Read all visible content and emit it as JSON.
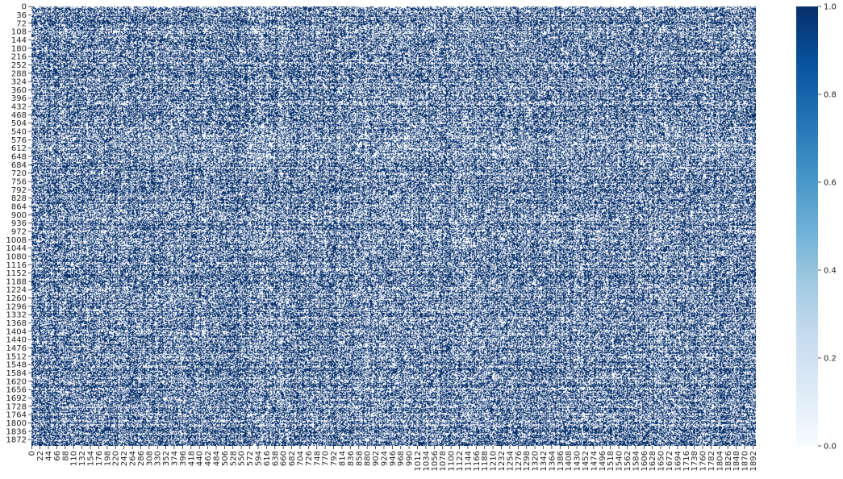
{
  "chart_data": {
    "type": "heatmap",
    "title": "",
    "xlabel": "",
    "ylabel": "",
    "n_rows": 1900,
    "n_cols": 1900,
    "values": "binary (0 or 1) per cell; dense irregular pattern, roughly half the cells are 1",
    "x_tick_labels": [
      "0",
      "22",
      "44",
      "66",
      "88",
      "110",
      "132",
      "154",
      "176",
      "198",
      "220",
      "242",
      "264",
      "286",
      "308",
      "330",
      "352",
      "374",
      "396",
      "418",
      "440",
      "462",
      "484",
      "506",
      "528",
      "550",
      "572",
      "594",
      "616",
      "638",
      "660",
      "682",
      "704",
      "726",
      "748",
      "770",
      "792",
      "814",
      "836",
      "858",
      "880",
      "902",
      "924",
      "946",
      "968",
      "990",
      "1012",
      "1034",
      "1056",
      "1078",
      "1100",
      "1122",
      "1144",
      "1166",
      "1188",
      "1210",
      "1232",
      "1254",
      "1276",
      "1298",
      "1320",
      "1342",
      "1364",
      "1386",
      "1408",
      "1430",
      "1452",
      "1474",
      "1496",
      "1518",
      "1540",
      "1562",
      "1584",
      "1606",
      "1628",
      "1650",
      "1672",
      "1694",
      "1716",
      "1738",
      "1760",
      "1782",
      "1804",
      "1826",
      "1848",
      "1870",
      "1892"
    ],
    "y_tick_labels": [
      "0",
      "36",
      "72",
      "108",
      "144",
      "180",
      "216",
      "252",
      "288",
      "324",
      "360",
      "396",
      "432",
      "468",
      "504",
      "540",
      "576",
      "612",
      "648",
      "684",
      "720",
      "756",
      "792",
      "828",
      "864",
      "900",
      "936",
      "972",
      "1008",
      "1044",
      "1080",
      "1116",
      "1152",
      "1188",
      "1224",
      "1260",
      "1296",
      "1332",
      "1368",
      "1404",
      "1440",
      "1476",
      "1512",
      "1548",
      "1584",
      "1620",
      "1656",
      "1692",
      "1728",
      "1764",
      "1800",
      "1836",
      "1872"
    ],
    "colorbar": {
      "range": [
        0.0,
        1.0
      ],
      "ticks": [
        "0.0",
        "0.2",
        "0.4",
        "0.6",
        "0.8",
        "1.0"
      ],
      "colormap": "Blues",
      "low_color": "#f7fbff",
      "mid_color": "#6baed6",
      "high_color": "#08306b"
    },
    "grid": false,
    "legend": "colorbar-right"
  }
}
